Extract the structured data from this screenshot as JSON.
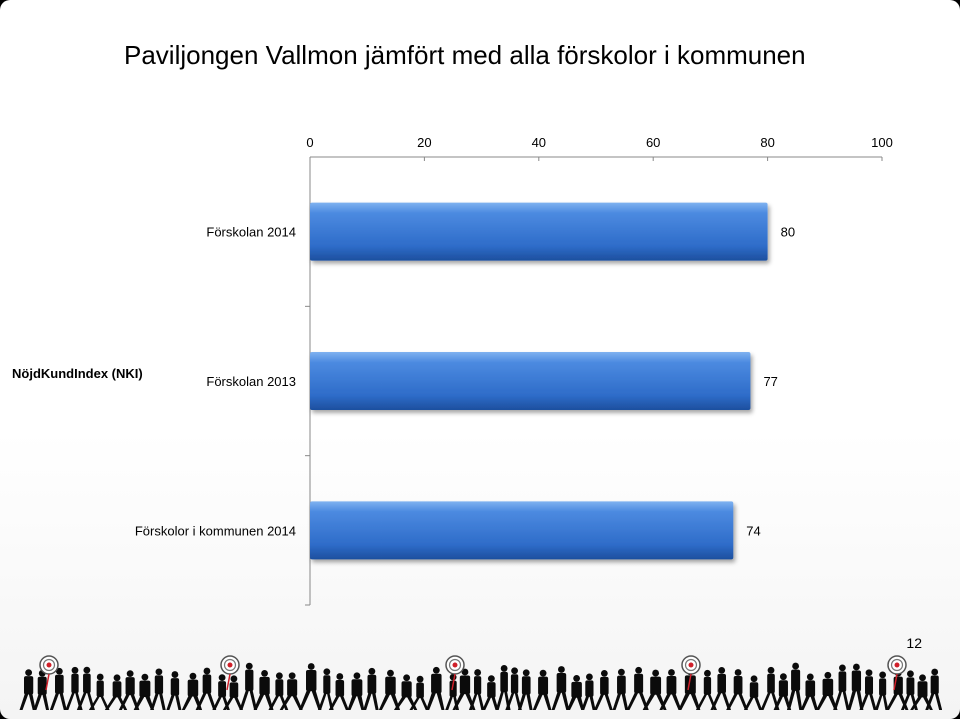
{
  "title": "Paviljongen Vallmon jämfört med alla förskolor i kommunen",
  "page_number": "12",
  "chart_data": {
    "type": "bar",
    "orientation": "horizontal",
    "group_label": "NöjdKundIndex (NKI)",
    "categories": [
      "Förskolan 2014",
      "Förskolan 2013",
      "Förskolor i kommunen 2014"
    ],
    "values": [
      80,
      77,
      74
    ],
    "xlim": [
      0,
      100
    ],
    "xticks": [
      0,
      20,
      40,
      60,
      80,
      100
    ],
    "axis_position": "top",
    "bar_color": "#3a7bd5",
    "bar_color_dark": "#1f56a8",
    "grid": false,
    "legend": "none"
  },
  "footer": {
    "image": "people-silhouettes-with-targets"
  }
}
